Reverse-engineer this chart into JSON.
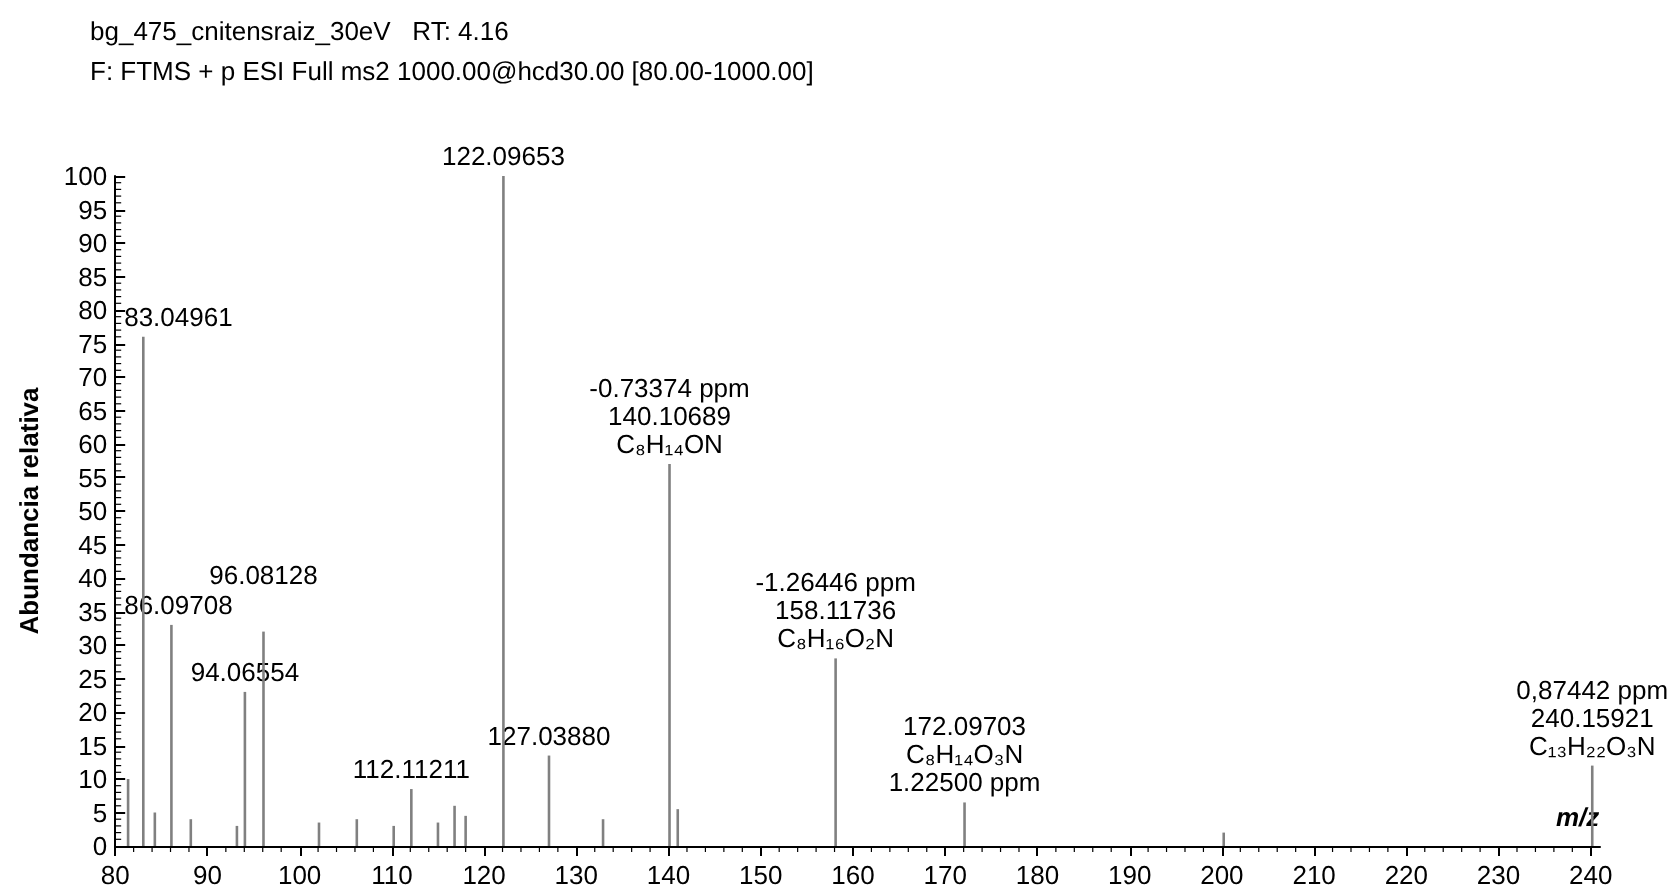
{
  "chart_data": {
    "type": "bar",
    "title": "bg_475_cnitensraiz_30eV   RT: 4.16",
    "subtitle": "F: FTMS + p ESI Full ms2 1000.00@hcd30.00 [80.00-1000.00]",
    "xlabel": "m/z",
    "ylabel": "Abundancia relativa",
    "x": [
      81.4,
      83.04961,
      84.3,
      86.09708,
      88.2,
      93.2,
      94.06554,
      96.08128,
      102.1,
      106.2,
      110.2,
      112.11211,
      115.0,
      116.8,
      118.0,
      122.09653,
      127.0388,
      132.9,
      140.10689,
      141.0,
      158.11736,
      172.09703,
      200.2,
      240.15921
    ],
    "values": [
      10,
      76,
      5,
      33,
      4,
      3,
      23,
      32,
      3.5,
      4,
      3,
      8.5,
      3.5,
      6,
      4.5,
      100,
      13.5,
      4,
      57,
      5.5,
      28,
      6.5,
      2,
      12
    ],
    "color": "#808080",
    "xlim": [
      80,
      241
    ],
    "xticks": [
      80,
      90,
      100,
      110,
      120,
      130,
      140,
      150,
      160,
      170,
      180,
      190,
      200,
      210,
      220,
      230,
      240
    ],
    "ylim": [
      0,
      100
    ],
    "yticks": [
      0,
      5,
      10,
      15,
      20,
      25,
      30,
      35,
      40,
      45,
      50,
      55,
      60,
      65,
      70,
      75,
      80,
      85,
      90,
      95,
      100
    ],
    "grid": false,
    "annotations": [
      {
        "text": "83.04961",
        "x": 83.04961,
        "y": 76
      },
      {
        "text": "86.09708",
        "x": 86.09708,
        "y": 33
      },
      {
        "text": "94.06554",
        "x": 94.06554,
        "y": 23
      },
      {
        "text": "96.08128",
        "x": 96.08128,
        "y": 32
      },
      {
        "text": "112.11211",
        "x": 112.11211,
        "y": 8.5
      },
      {
        "text": "122.09653",
        "x": 122.09653,
        "y": 100
      },
      {
        "text": "127.03880",
        "x": 127.0388,
        "y": 13.5
      },
      {
        "text": "-0.73374 ppm\n140.10689\nC₈H₁₄ON",
        "x": 140.10689,
        "y": 57
      },
      {
        "text": "-1.26446 ppm\n158.11736\nC₈H₁₆O₂N",
        "x": 158.11736,
        "y": 28
      },
      {
        "text": "172.09703\nC₈H₁₄O₃N\n1.22500 ppm",
        "x": 172.09703,
        "y": 6.5
      },
      {
        "text": "0,87442 ppm\n240.15921\nC₁₃H₂₂O₃N",
        "x": 240.15921,
        "y": 12
      }
    ]
  }
}
